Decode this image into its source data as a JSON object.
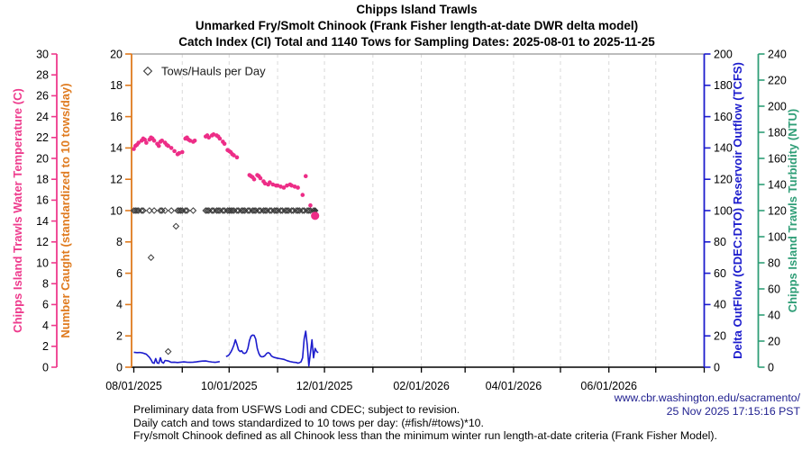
{
  "header": {
    "title": "Chipps Island Trawls",
    "subtitle": "Unmarked Fry/Smolt Chinook (Frank Fisher length-at-date DWR delta model)",
    "subtitle2": "Catch Index (CI) Total and 1140 Tows for Sampling Dates: 2025-08-01 to 2025-11-25"
  },
  "legend": {
    "items": [
      {
        "marker": "open-diamond-icon",
        "label": "Tows/Hauls per Day"
      }
    ]
  },
  "footer": {
    "lines": [
      "Preliminary data from USFWS Lodi and CDEC; subject to revision.",
      "Daily catch and tows standardized to 10 tows per day: (#fish/#tows)*10.",
      "Fry/smolt Chinook defined as all Chinook less than the minimum winter run length-at-date criteria (Frank Fisher Model)."
    ],
    "link": "www.cbr.washington.edu/sacramento/",
    "timestamp": "25 Nov 2025 17:15:16 PST"
  },
  "chart_data": {
    "type": "scatter",
    "title": "Chipps Island Trawls",
    "x_axis": {
      "start_date": "2025-08-01",
      "end_date": "2026-08-01",
      "range_days": 365,
      "tick_days": [
        0,
        31,
        61,
        92,
        122,
        153,
        184,
        212,
        243,
        273,
        304,
        334,
        365
      ],
      "grid_days": [
        31,
        61,
        92,
        122,
        153,
        184,
        212,
        243,
        273,
        304,
        334
      ],
      "label_days": [
        0,
        61,
        122,
        184,
        243,
        304
      ],
      "tick_labels": [
        "08/01/2025",
        "10/01/2025",
        "12/01/2025",
        "02/01/2026",
        "04/01/2026",
        "06/01/2026"
      ],
      "grid": "vertical dashed monthly"
    },
    "y_axes": [
      {
        "id": "temp",
        "label": "Chipps Island Trawls Water Temperature (C)",
        "color": "#ee3a8c",
        "min": 0,
        "max": 30,
        "ticks": [
          0,
          2,
          4,
          6,
          8,
          10,
          12,
          14,
          16,
          18,
          20,
          22,
          24,
          26,
          28,
          30
        ],
        "side": "left-outer"
      },
      {
        "id": "caught",
        "label": "Number Caught (standardized to 10 tows/day)",
        "color": "#df7a1e",
        "min": 0,
        "max": 20,
        "ticks": [
          0,
          2,
          4,
          6,
          8,
          10,
          12,
          14,
          16,
          18,
          20
        ],
        "side": "left-inner"
      },
      {
        "id": "outflow",
        "label": "Delta OutFlow (CDEC:DTO) Reservoir Outflow (TCFS)",
        "color": "#1c1ccd",
        "min": 0,
        "max": 200,
        "ticks": [
          0,
          20,
          40,
          60,
          80,
          100,
          120,
          140,
          160,
          180,
          200
        ],
        "side": "right-inner"
      },
      {
        "id": "turbidity",
        "label": "Chipps Island Trawls Turbidity (NTU)",
        "color": "#2f9e77",
        "min": 0,
        "max": 240,
        "ticks": [
          0,
          20,
          40,
          60,
          80,
          100,
          120,
          140,
          160,
          180,
          200,
          220,
          240
        ],
        "side": "right-outer"
      }
    ],
    "series": [
      {
        "name": "Water Temperature (C)",
        "axis": "temp",
        "type": "scatter",
        "marker": "filled-circle",
        "color": "#ed2d87",
        "last_point_emphasis": true,
        "points": [
          [
            0,
            20.9
          ],
          [
            1,
            21.2
          ],
          [
            2,
            21.3
          ],
          [
            3,
            21.5
          ],
          [
            5,
            21.7
          ],
          [
            6,
            21.9
          ],
          [
            7,
            21.8
          ],
          [
            8,
            21.5
          ],
          [
            10,
            21.8
          ],
          [
            11,
            22.0
          ],
          [
            12,
            21.9
          ],
          [
            13,
            21.7
          ],
          [
            15,
            21.4
          ],
          [
            16,
            21.2
          ],
          [
            17,
            21.6
          ],
          [
            18,
            21.7
          ],
          [
            20,
            21.5
          ],
          [
            21,
            21.3
          ],
          [
            22,
            21.2
          ],
          [
            24,
            21.0
          ],
          [
            26,
            20.7
          ],
          [
            28,
            20.4
          ],
          [
            29,
            20.5
          ],
          [
            31,
            20.6
          ],
          [
            33,
            21.9
          ],
          [
            34,
            22.0
          ],
          [
            35,
            21.8
          ],
          [
            36,
            21.7
          ],
          [
            38,
            21.6
          ],
          [
            39,
            21.7
          ],
          [
            46,
            22.1
          ],
          [
            47,
            22.2
          ],
          [
            48,
            22.0
          ],
          [
            50,
            22.2
          ],
          [
            51,
            22.3
          ],
          [
            53,
            22.2
          ],
          [
            54,
            22.1
          ],
          [
            55,
            21.9
          ],
          [
            57,
            21.6
          ],
          [
            58,
            21.4
          ],
          [
            60,
            20.8
          ],
          [
            61,
            20.7
          ],
          [
            62,
            20.6
          ],
          [
            63,
            20.4
          ],
          [
            64,
            20.3
          ],
          [
            66,
            20.1
          ],
          [
            74,
            18.4
          ],
          [
            75,
            18.3
          ],
          [
            76,
            18.2
          ],
          [
            77,
            18.0
          ],
          [
            79,
            18.4
          ],
          [
            80,
            18.3
          ],
          [
            81,
            18.1
          ],
          [
            83,
            17.8
          ],
          [
            84,
            17.6
          ],
          [
            86,
            17.5
          ],
          [
            87,
            17.7
          ],
          [
            89,
            17.5
          ],
          [
            91,
            17.4
          ],
          [
            92,
            17.4
          ],
          [
            94,
            17.3
          ],
          [
            96,
            17.2
          ],
          [
            98,
            17.4
          ],
          [
            100,
            17.5
          ],
          [
            101,
            17.4
          ],
          [
            103,
            17.3
          ],
          [
            105,
            17.2
          ],
          [
            108,
            16.5
          ],
          [
            110,
            18.3
          ],
          [
            113,
            15.5
          ],
          [
            116,
            14.5
          ]
        ]
      },
      {
        "name": "Tows/Hauls per Day",
        "axis": "caught",
        "type": "scatter",
        "marker": "open-diamond",
        "color": "#3a3a3a",
        "last_point_filled": true,
        "points": [
          [
            0,
            10
          ],
          [
            1,
            10
          ],
          [
            2,
            10
          ],
          [
            3,
            10
          ],
          [
            5,
            10
          ],
          [
            6,
            10
          ],
          [
            10,
            10
          ],
          [
            11,
            7
          ],
          [
            13,
            10
          ],
          [
            17,
            10
          ],
          [
            18,
            10
          ],
          [
            20,
            10
          ],
          [
            22,
            1
          ],
          [
            24,
            10
          ],
          [
            27,
            9
          ],
          [
            28,
            10
          ],
          [
            29,
            10
          ],
          [
            30,
            10
          ],
          [
            31,
            10
          ],
          [
            33,
            10
          ],
          [
            34,
            10
          ],
          [
            38,
            10
          ],
          [
            46,
            10
          ],
          [
            47,
            10
          ],
          [
            48,
            10
          ],
          [
            50,
            10
          ],
          [
            51,
            10
          ],
          [
            53,
            10
          ],
          [
            54,
            10
          ],
          [
            55,
            10
          ],
          [
            57,
            10
          ],
          [
            58,
            10
          ],
          [
            60,
            10
          ],
          [
            61,
            10
          ],
          [
            62,
            10
          ],
          [
            63,
            10
          ],
          [
            64,
            10
          ],
          [
            66,
            10
          ],
          [
            67,
            10
          ],
          [
            69,
            10
          ],
          [
            70,
            10
          ],
          [
            71,
            10
          ],
          [
            73,
            10
          ],
          [
            74,
            10
          ],
          [
            76,
            10
          ],
          [
            77,
            10
          ],
          [
            78,
            10
          ],
          [
            80,
            10
          ],
          [
            81,
            10
          ],
          [
            83,
            10
          ],
          [
            84,
            10
          ],
          [
            85,
            10
          ],
          [
            87,
            10
          ],
          [
            88,
            10
          ],
          [
            90,
            10
          ],
          [
            91,
            10
          ],
          [
            92,
            10
          ],
          [
            94,
            10
          ],
          [
            95,
            10
          ],
          [
            97,
            10
          ],
          [
            98,
            10
          ],
          [
            99,
            10
          ],
          [
            101,
            10
          ],
          [
            102,
            10
          ],
          [
            104,
            10
          ],
          [
            105,
            10
          ],
          [
            106,
            10
          ],
          [
            108,
            10
          ],
          [
            109,
            10
          ],
          [
            111,
            10
          ],
          [
            112,
            10
          ],
          [
            113,
            10
          ],
          [
            115,
            10
          ],
          [
            116,
            10
          ]
        ]
      },
      {
        "name": "Delta OutFlow (TCFS)",
        "axis": "outflow",
        "type": "line",
        "color": "#1c1ccd",
        "segments": [
          [
            [
              0,
              9.5
            ],
            [
              2,
              9.3
            ],
            [
              4,
              9.4
            ],
            [
              6,
              9.0
            ],
            [
              8,
              8.3
            ],
            [
              10,
              6.3
            ],
            [
              11,
              4.8
            ],
            [
              12,
              2.9
            ],
            [
              13,
              2.5
            ],
            [
              14,
              5.5
            ],
            [
              15,
              2.7
            ],
            [
              16,
              2.5
            ],
            [
              17,
              6.0
            ],
            [
              18,
              3.2
            ],
            [
              19,
              2.6
            ],
            [
              20,
              4.3
            ],
            [
              22,
              4.0
            ],
            [
              24,
              3.1
            ],
            [
              26,
              3.2
            ],
            [
              28,
              3.0
            ],
            [
              30,
              3.2
            ],
            [
              32,
              3.4
            ],
            [
              34,
              3.2
            ],
            [
              36,
              3.1
            ],
            [
              38,
              3.2
            ],
            [
              40,
              3.4
            ],
            [
              42,
              3.7
            ],
            [
              44,
              3.9
            ],
            [
              46,
              4.0
            ],
            [
              48,
              3.6
            ],
            [
              50,
              3.3
            ],
            [
              52,
              3.1
            ],
            [
              54,
              3.4
            ],
            [
              55,
              3.6
            ]
          ],
          [
            [
              59,
              6.8
            ],
            [
              60,
              7.2
            ],
            [
              61,
              8.0
            ],
            [
              62,
              9.5
            ],
            [
              63,
              11.5
            ],
            [
              64,
              14.0
            ],
            [
              65,
              17.5
            ],
            [
              66,
              14.5
            ],
            [
              67,
              11.0
            ],
            [
              68,
              10.0
            ],
            [
              69,
              10.5
            ],
            [
              70,
              9.0
            ],
            [
              71,
              8.8
            ],
            [
              72,
              9.5
            ],
            [
              73,
              12.0
            ],
            [
              74,
              17.0
            ],
            [
              75,
              19.8
            ],
            [
              76,
              20.5
            ],
            [
              77,
              20.3
            ],
            [
              78,
              18.0
            ],
            [
              79,
              12.0
            ],
            [
              80,
              8.8
            ],
            [
              81,
              7.0
            ],
            [
              82,
              6.6
            ],
            [
              83,
              6.8
            ],
            [
              84,
              7.5
            ],
            [
              85,
              8.8
            ],
            [
              86,
              9.3
            ],
            [
              87,
              8.8
            ],
            [
              88,
              7.2
            ],
            [
              89,
              6.6
            ],
            [
              90,
              6.2
            ],
            [
              92,
              5.7
            ],
            [
              94,
              5.4
            ],
            [
              96,
              5.0
            ],
            [
              98,
              4.2
            ],
            [
              100,
              3.6
            ],
            [
              102,
              3.2
            ],
            [
              104,
              3.0
            ],
            [
              105,
              2.6
            ],
            [
              106,
              2.9
            ],
            [
              107,
              3.4
            ],
            [
              108,
              6.0
            ],
            [
              109,
              18.0
            ],
            [
              110,
              23.0
            ],
            [
              111,
              14.0
            ],
            [
              112,
              0.8
            ],
            [
              113,
              9.0
            ],
            [
              114,
              17.5
            ],
            [
              115,
              6.0
            ],
            [
              116,
              12.0
            ],
            [
              117,
              10.0
            ],
            [
              118,
              9.3
            ]
          ]
        ]
      }
    ],
    "legend_position": "top-left-inside"
  },
  "colors": {
    "temperature": "#ed2d87",
    "temperature_axis": "#ee3a8c",
    "caught_axis": "#df7a1e",
    "outflow_axis": "#1c1ccd",
    "turbidity_axis": "#2f9e77",
    "tows_marker": "#3a3a3a",
    "gridline": "#d9d9d9",
    "footer_link": "#1f1f8f"
  }
}
